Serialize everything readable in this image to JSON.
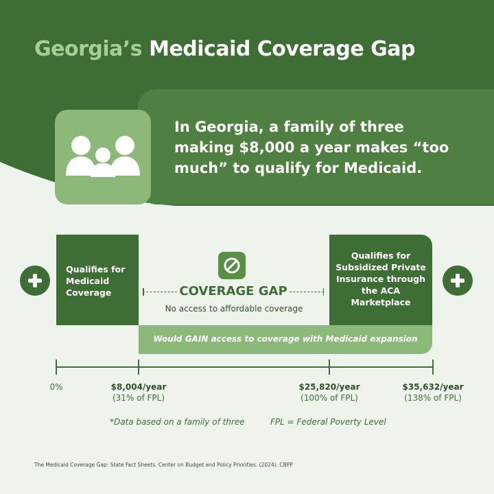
{
  "header": {
    "title_highlight": "Georgia’s",
    "title_rest": "Medicaid Coverage Gap"
  },
  "callout": {
    "icon": "family-icon",
    "lines": [
      "In Georgia, a family of three",
      "making $8,000 a year makes “too",
      "much” to qualify for Medicaid."
    ]
  },
  "left_box": {
    "icon": "plus-icon",
    "lines": [
      "Qualifies for",
      "Medicaid",
      "Coverage"
    ]
  },
  "gap": {
    "icon": "prohibited-icon",
    "title": "COVERAGE GAP",
    "subtitle": "No access to affordable coverage"
  },
  "right_box": {
    "icon": "plus-icon",
    "lines": [
      "Qualifies for",
      "Subsidized Private",
      "Insurance through",
      "the ACA",
      "Marketplace"
    ]
  },
  "expansion": {
    "text": "Would GAIN access to coverage with Medicaid expansion"
  },
  "scale": {
    "ticks": [
      {
        "amount": "0%",
        "percent": ""
      },
      {
        "amount": "$8,004/year",
        "percent": "(31% of FPL)"
      },
      {
        "amount": "$25,820/year",
        "percent": "(100% of FPL)"
      },
      {
        "amount": "$35,632/year",
        "percent": "(138% of FPL)"
      }
    ]
  },
  "notes": {
    "family": "*Data based on a family of three",
    "fpl": "FPL = Federal Poverty Level"
  },
  "source": "The Medicaid Coverage Gap: State Fact Sheets. Center on Budget and Policy Priorities. (2024). CBPP",
  "colors": {
    "dark_green": "#3e6d35",
    "mid_green": "#4f7f41",
    "light_green": "#8cb87a",
    "title_highlight": "#a6cf92",
    "background": "#eef4ec"
  }
}
